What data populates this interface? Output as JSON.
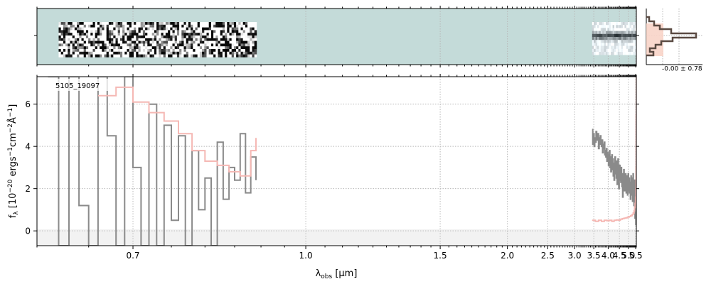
{
  "figure": {
    "object_label": "5105_19097",
    "stats_label": "-0.00 ± 0.78"
  },
  "chart_data": {
    "type": "line",
    "title": "",
    "object_id": "5105_19097",
    "x_scale": "reciprocal",
    "xlim": [
      0.6,
      5.55
    ],
    "ylim": [
      -0.7,
      7.3
    ],
    "xlabel_main": "λ",
    "xlabel_sub": "obs",
    "xlabel_unit": " [μm]",
    "ylabel": "f_λ [10^-20 ergs^-1 cm^-2 Å^-1]",
    "x_ticks": [
      0.7,
      1.0,
      1.5,
      2.0,
      2.5,
      3.0,
      3.5,
      4.0,
      4.5,
      5.0,
      5.5
    ],
    "x_tick_labels": [
      "0.7",
      "1.0",
      "1.5",
      "2.0",
      "2.5",
      "3.0",
      "3.5",
      "4.0",
      "4.5",
      "5.0",
      "5.5"
    ],
    "y_ticks": [
      0,
      2,
      4,
      6
    ],
    "y_tick_labels": [
      "0",
      "2",
      "4",
      "6"
    ],
    "grid": true,
    "colors": {
      "flux": "#8a8a8a",
      "error": "#f5b8b4",
      "grid": "#b8b8b8",
      "spectrum_2d_bg": "#c4dbd9",
      "profile": "#5a4a42",
      "profile_fill": "#f8d4c8",
      "zero_band": "#f2f2f2"
    },
    "series": [
      {
        "role": "flux_blue_segment",
        "x": [
          0.61,
          0.62,
          0.63,
          0.64,
          0.65,
          0.66,
          0.67,
          0.68,
          0.69,
          0.7,
          0.71,
          0.72,
          0.73,
          0.74,
          0.75,
          0.76,
          0.77,
          0.78,
          0.79,
          0.8,
          0.81,
          0.82,
          0.83,
          0.84,
          0.85,
          0.86,
          0.87,
          0.88,
          0.89
        ],
        "y": [
          7.3,
          -0.7,
          7.3,
          1.2,
          -0.7,
          7.3,
          4.5,
          -0.7,
          7.3,
          3.0,
          -0.7,
          6.0,
          -0.7,
          5.0,
          0.5,
          4.5,
          -0.7,
          3.8,
          1.0,
          2.5,
          -0.7,
          4.2,
          1.5,
          3.0,
          2.4,
          4.6,
          1.8,
          3.5,
          2.4
        ]
      },
      {
        "role": "error_blue_segment",
        "x": [
          0.66,
          0.68,
          0.7,
          0.72,
          0.74,
          0.76,
          0.78,
          0.8,
          0.82,
          0.84,
          0.86,
          0.88,
          0.89
        ],
        "y": [
          6.4,
          6.8,
          6.1,
          5.6,
          5.2,
          4.6,
          3.8,
          3.3,
          3.1,
          2.8,
          2.6,
          3.8,
          4.4
        ]
      },
      {
        "role": "flux_red_segment",
        "x": [
          3.45,
          3.47,
          3.49,
          3.51,
          3.53,
          3.55,
          3.57,
          3.59,
          3.61,
          3.63,
          3.65,
          3.67,
          3.69,
          3.71,
          3.73,
          3.75,
          3.77,
          3.79,
          3.81,
          3.83,
          3.85,
          3.87,
          3.89,
          3.91,
          3.93,
          3.95,
          3.97,
          3.99,
          4.01,
          4.03,
          4.05,
          4.07,
          4.09,
          4.11,
          4.13,
          4.15,
          4.17,
          4.19,
          4.21,
          4.23,
          4.25,
          4.27,
          4.29,
          4.31,
          4.33,
          4.35,
          4.37,
          4.39,
          4.41,
          4.43,
          4.45,
          4.47,
          4.49,
          4.51,
          4.53,
          4.55,
          4.57,
          4.59,
          4.61,
          4.63,
          4.65,
          4.67,
          4.69,
          4.71,
          4.73,
          4.75,
          4.77,
          4.79,
          4.81,
          4.83,
          4.85,
          4.87,
          4.89,
          4.91,
          4.93,
          4.95,
          4.97,
          4.99,
          5.01,
          5.03,
          5.05,
          5.07,
          5.09,
          5.11,
          5.13,
          5.15,
          5.17,
          5.19,
          5.21,
          5.23,
          5.25,
          5.27,
          5.29,
          5.31,
          5.33,
          5.35,
          5.37,
          5.39,
          5.41,
          5.43,
          5.45,
          5.47,
          5.49,
          5.51,
          5.53,
          5.55
        ],
        "y": [
          4.8,
          4.1,
          4.6,
          4.0,
          4.4,
          4.2,
          4.7,
          4.5,
          4.3,
          4.6,
          3.9,
          4.4,
          4.1,
          4.5,
          4.2,
          4.0,
          4.3,
          3.7,
          4.1,
          3.9,
          4.2,
          3.6,
          3.8,
          3.5,
          3.9,
          3.3,
          3.7,
          3.4,
          3.1,
          3.6,
          3.8,
          3.0,
          3.5,
          2.8,
          3.3,
          3.6,
          2.9,
          3.4,
          2.6,
          3.2,
          2.4,
          3.0,
          3.5,
          2.7,
          3.1,
          2.5,
          3.3,
          2.2,
          2.9,
          3.4,
          2.6,
          2.0,
          2.8,
          3.1,
          2.4,
          2.9,
          2.3,
          3.0,
          2.5,
          2.1,
          2.7,
          1.6,
          2.6,
          2.2,
          2.9,
          2.3,
          1.9,
          2.5,
          2.1,
          2.7,
          2.2,
          1.8,
          2.4,
          2.0,
          2.6,
          1.7,
          2.3,
          2.7,
          1.9,
          2.2,
          2.5,
          1.8,
          2.3,
          2.0,
          1.5,
          2.1,
          2.6,
          1.7,
          2.3,
          1.9,
          2.5,
          1.4,
          2.2,
          2.7,
          1.6,
          2.0,
          1.2,
          1.9,
          1.4,
          2.4,
          0.6,
          1.8,
          1.3,
          0.3,
          2.2,
          4.4
        ]
      },
      {
        "role": "error_red_segment",
        "x": [
          3.45,
          3.55,
          3.65,
          3.75,
          3.85,
          3.95,
          4.05,
          4.15,
          4.25,
          4.35,
          4.45,
          4.55,
          4.65,
          4.75,
          4.85,
          4.95,
          5.05,
          5.15,
          5.25,
          5.32,
          5.38,
          5.42,
          5.46,
          5.49,
          5.51,
          5.53,
          5.54,
          5.55
        ],
        "y": [
          0.5,
          0.45,
          0.5,
          0.45,
          0.5,
          0.48,
          0.5,
          0.45,
          0.5,
          0.52,
          0.5,
          0.55,
          0.58,
          0.6,
          0.62,
          0.65,
          0.68,
          0.72,
          0.78,
          0.85,
          0.95,
          1.1,
          1.3,
          1.6,
          2.0,
          3.0,
          5.5,
          7.3
        ]
      }
    ],
    "spectrum_2d": {
      "segments": [
        {
          "x_range": [
            0.62,
            0.89
          ],
          "texture": "noisy"
        },
        {
          "x_range": [
            3.45,
            5.55
          ],
          "texture": "trace"
        }
      ]
    },
    "profile_panel": {
      "stats_text": "-0.00 ± 0.78"
    }
  }
}
